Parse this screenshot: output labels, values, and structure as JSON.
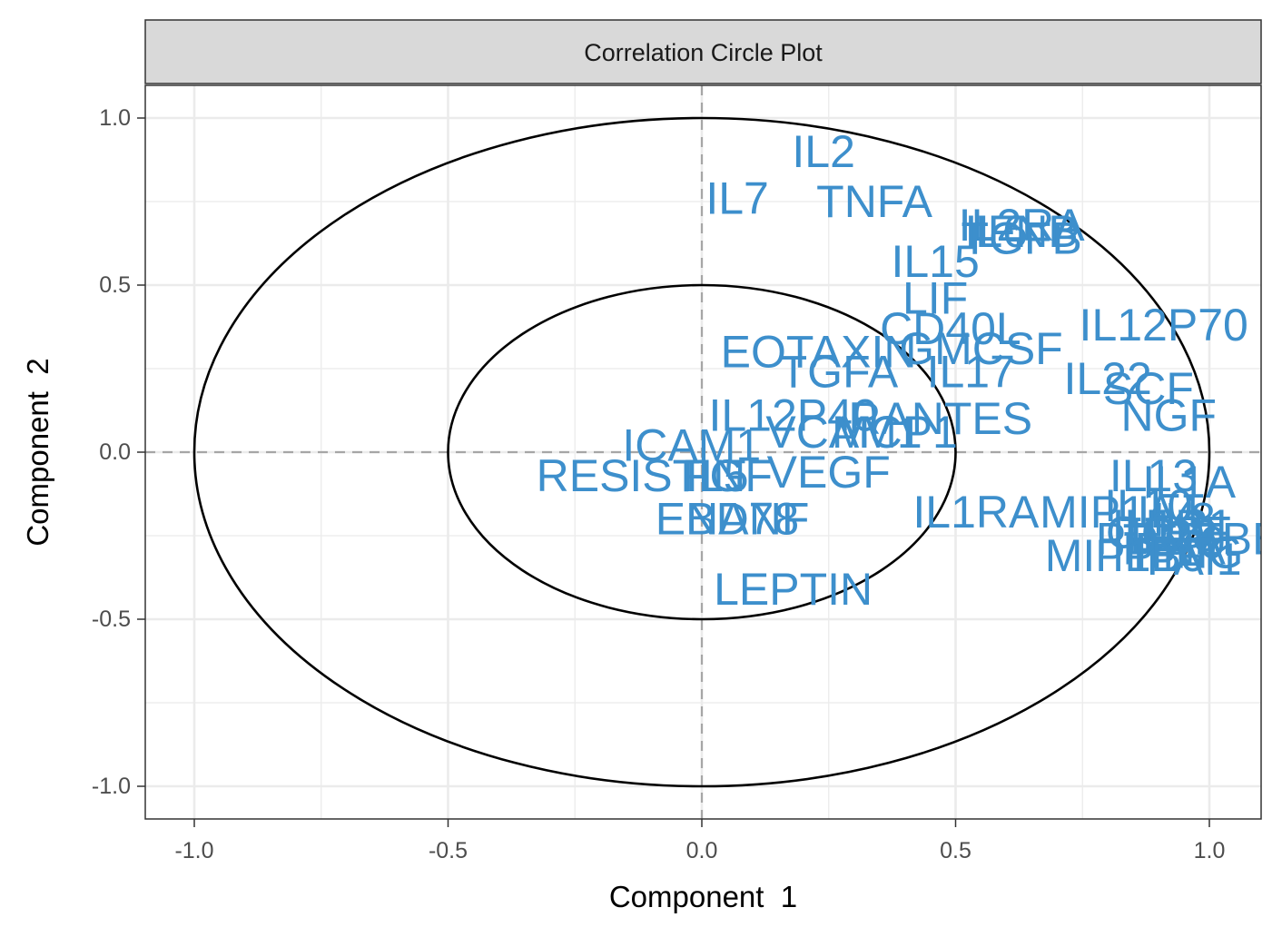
{
  "chart_data": {
    "type": "scatter",
    "title": "Correlation Circle Plot",
    "xlabel": "Component  1",
    "ylabel": "Component  2",
    "xlim": [
      -1.1,
      1.1
    ],
    "ylim": [
      -1.1,
      1.1
    ],
    "x_ticks": [
      "-1.0",
      "-0.5",
      "0.0",
      "0.5",
      "1.0"
    ],
    "y_ticks": [
      "1.0",
      "0.5",
      "0.0",
      "-0.5",
      "-1.0"
    ],
    "x_tick_values": [
      -1.0,
      -0.5,
      0.0,
      0.5,
      1.0
    ],
    "y_tick_values": [
      1.0,
      0.5,
      0.0,
      -0.5,
      -1.0
    ],
    "circles": [
      1.0,
      0.5
    ],
    "grid": true,
    "label_color": "#3D8FCC",
    "points": [
      {
        "label": "IL2",
        "x": 0.24,
        "y": 0.9
      },
      {
        "label": "IL7",
        "x": 0.07,
        "y": 0.76
      },
      {
        "label": "TNFA",
        "x": 0.34,
        "y": 0.75
      },
      {
        "label": "IL2RA",
        "x": 0.63,
        "y": 0.68
      },
      {
        "label": "IL6",
        "x": 0.58,
        "y": 0.66
      },
      {
        "label": "IFNB",
        "x": 0.64,
        "y": 0.66
      },
      {
        "label": "TGFB",
        "x": 0.63,
        "y": 0.64
      },
      {
        "label": "IL15",
        "x": 0.46,
        "y": 0.57
      },
      {
        "label": "LIF",
        "x": 0.46,
        "y": 0.46
      },
      {
        "label": "CD40L",
        "x": 0.49,
        "y": 0.37
      },
      {
        "label": "IL12P70",
        "x": 0.91,
        "y": 0.38
      },
      {
        "label": "EOTAXIN",
        "x": 0.23,
        "y": 0.3
      },
      {
        "label": "GMCSF",
        "x": 0.55,
        "y": 0.31
      },
      {
        "label": "IL17",
        "x": 0.53,
        "y": 0.24
      },
      {
        "label": "TGFA",
        "x": 0.27,
        "y": 0.24
      },
      {
        "label": "IL22",
        "x": 0.8,
        "y": 0.22
      },
      {
        "label": "SCF",
        "x": 0.88,
        "y": 0.19
      },
      {
        "label": "NGF",
        "x": 0.92,
        "y": 0.11
      },
      {
        "label": "IL12P40",
        "x": 0.18,
        "y": 0.11
      },
      {
        "label": "RANTES",
        "x": 0.47,
        "y": 0.1
      },
      {
        "label": "VCAM1",
        "x": 0.28,
        "y": 0.06
      },
      {
        "label": "MCP1",
        "x": 0.38,
        "y": 0.06
      },
      {
        "label": "ICAM1",
        "x": -0.02,
        "y": 0.02
      },
      {
        "label": "RESISTIN",
        "x": -0.12,
        "y": -0.07
      },
      {
        "label": "IL5",
        "x": 0.03,
        "y": -0.07
      },
      {
        "label": "FGF",
        "x": 0.05,
        "y": -0.07
      },
      {
        "label": "VEGF",
        "x": 0.25,
        "y": -0.06
      },
      {
        "label": "ENA78",
        "x": 0.05,
        "y": -0.2
      },
      {
        "label": "BDNF",
        "x": 0.09,
        "y": -0.2
      },
      {
        "label": "IL1RA",
        "x": 0.54,
        "y": -0.18
      },
      {
        "label": "IL13",
        "x": 0.89,
        "y": -0.07
      },
      {
        "label": "IL1A",
        "x": 0.96,
        "y": -0.09
      },
      {
        "label": "MIP1A",
        "x": 0.8,
        "y": -0.18
      },
      {
        "label": "IL10",
        "x": 0.88,
        "y": -0.16
      },
      {
        "label": "IL4",
        "x": 0.92,
        "y": -0.18
      },
      {
        "label": "IL8",
        "x": 0.95,
        "y": -0.2
      },
      {
        "label": "IL1B",
        "x": 0.9,
        "y": -0.22
      },
      {
        "label": "IL21",
        "x": 0.96,
        "y": -0.22
      },
      {
        "label": "IL23",
        "x": 0.93,
        "y": -0.25
      },
      {
        "label": "IL9",
        "x": 0.97,
        "y": -0.27
      },
      {
        "label": "IFNA",
        "x": 0.93,
        "y": -0.29
      },
      {
        "label": "IFNG",
        "x": 0.96,
        "y": -0.3
      },
      {
        "label": "IP10",
        "x": 0.9,
        "y": -0.31
      },
      {
        "label": "PAI1",
        "x": 0.97,
        "y": -0.32
      },
      {
        "label": "GCSF",
        "x": 0.92,
        "y": -0.24
      },
      {
        "label": "PDGFBB",
        "x": 0.96,
        "y": -0.26
      },
      {
        "label": "MIP1B",
        "x": 0.81,
        "y": -0.31
      },
      {
        "label": "LEPTIN",
        "x": 0.18,
        "y": -0.41
      }
    ]
  }
}
